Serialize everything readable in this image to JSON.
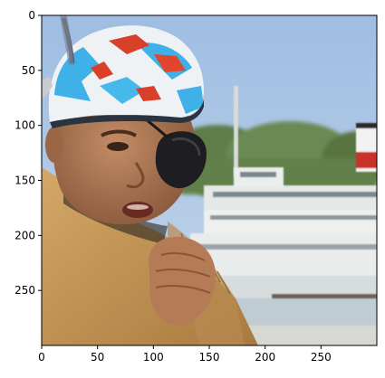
{
  "axes": {
    "x": {
      "ticks": [
        {
          "value": 0,
          "label": "0"
        },
        {
          "value": 50,
          "label": "50"
        },
        {
          "value": 100,
          "label": "100"
        },
        {
          "value": 150,
          "label": "150"
        },
        {
          "value": 200,
          "label": "200"
        },
        {
          "value": 250,
          "label": "250"
        }
      ],
      "range": [
        0,
        300
      ]
    },
    "y": {
      "ticks": [
        {
          "value": 0,
          "label": "0"
        },
        {
          "value": 50,
          "label": "50"
        },
        {
          "value": 100,
          "label": "100"
        },
        {
          "value": 150,
          "label": "150"
        },
        {
          "value": 200,
          "label": "200"
        },
        {
          "value": 250,
          "label": "250"
        }
      ],
      "range": [
        0,
        300
      ],
      "inverted": true
    }
  },
  "image": {
    "subject": "child wearing a bandana and eye patch with a ferry boat in the background",
    "colors": {
      "sky": "#a8c4e4",
      "trees": "#5d7a46",
      "boat": "#e8ece8",
      "water": "#b8c8d0",
      "skin": "#b07a56",
      "jacket": "#c99a58",
      "bandana_blue": "#3fb0e8",
      "bandana_red": "#d8402a",
      "bandana_white": "#eef2f5",
      "eyepatch": "#1f1f22"
    }
  }
}
